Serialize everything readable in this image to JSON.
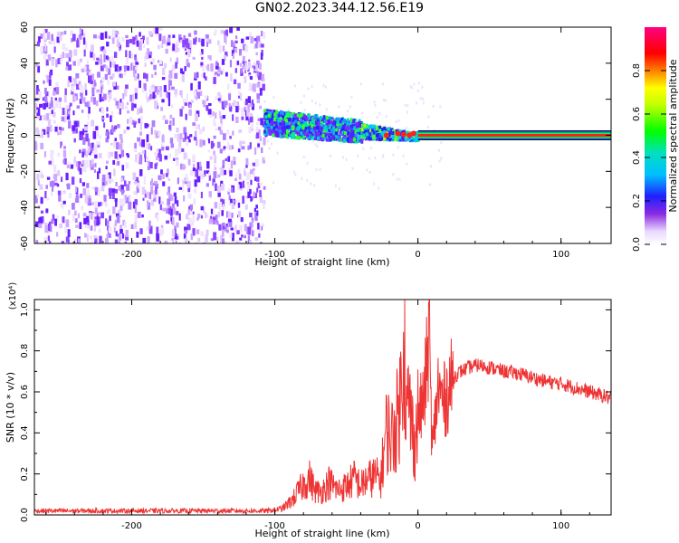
{
  "figure": {
    "title": "GN02.2023.344.12.56.E19"
  },
  "colorbar": {
    "label": "Normalized spectral amplitude",
    "ticks": [
      "0.0",
      "0.2",
      "0.4",
      "0.6",
      "0.8"
    ],
    "range": [
      0,
      1
    ]
  },
  "chart_data": [
    {
      "type": "heatmap",
      "title": "",
      "xlabel": "Height of straight line (km)",
      "ylabel": "Frequency (Hz)",
      "xlim": [
        -268,
        135
      ],
      "ylim": [
        -60,
        60
      ],
      "x_ticks": [
        -200,
        -100,
        0,
        100
      ],
      "y_ticks": [
        -60,
        -40,
        -20,
        0,
        20,
        40,
        60
      ],
      "regions": [
        {
          "name": "broadband noise",
          "x": [
            -268,
            -108
          ],
          "freq": [
            -60,
            60
          ],
          "amplitude": 0.05
        },
        {
          "name": "dispersive band",
          "x": [
            -108,
            -40
          ],
          "center_freq": [
            8,
            3
          ],
          "half_width": [
            7,
            6
          ],
          "amplitude": 0.35
        },
        {
          "name": "narrow band",
          "x": [
            -40,
            0
          ],
          "center_freq": [
            3,
            0
          ],
          "half_width": [
            4,
            2
          ],
          "amplitude": 0.45
        },
        {
          "name": "line at 0 Hz",
          "x": [
            0,
            135
          ],
          "freq": [
            0,
            0
          ],
          "amplitude": 1.0
        }
      ],
      "grid": false
    },
    {
      "type": "line",
      "title": "",
      "xlabel": "Height of straight line (km)",
      "ylabel": "SNR (10 * v/v)",
      "y_multiplier": "(x10⁴)",
      "xlim": [
        -268,
        135
      ],
      "ylim": [
        0,
        1.05
      ],
      "x_ticks": [
        -200,
        -100,
        0,
        100
      ],
      "y_ticks": [
        0.0,
        0.2,
        0.4,
        0.6,
        0.8,
        1.0
      ],
      "color": "#ee3333",
      "series": [
        {
          "x": [
            -268,
            -250,
            -230,
            -200,
            -170,
            -140,
            -120,
            -105,
            -95,
            -88,
            -82,
            -76,
            -72,
            -68,
            -62,
            -56,
            -50,
            -44,
            -40,
            -36,
            -30,
            -26,
            -22,
            -18,
            -15,
            -12,
            -10,
            -8,
            -6,
            -4,
            -2,
            0,
            4,
            8,
            10,
            14,
            18,
            22,
            26,
            30,
            36,
            42,
            50,
            60,
            70,
            80,
            90,
            100,
            110,
            120,
            130,
            135
          ],
          "y": [
            0.02,
            0.02,
            0.02,
            0.02,
            0.02,
            0.02,
            0.02,
            0.02,
            0.03,
            0.07,
            0.13,
            0.18,
            0.12,
            0.11,
            0.16,
            0.12,
            0.14,
            0.18,
            0.14,
            0.17,
            0.19,
            0.17,
            0.42,
            0.38,
            0.45,
            0.58,
            0.95,
            0.48,
            0.55,
            0.42,
            0.35,
            0.48,
            0.55,
            0.88,
            0.3,
            0.62,
            0.55,
            0.62,
            0.68,
            0.7,
            0.72,
            0.73,
            0.72,
            0.7,
            0.69,
            0.67,
            0.65,
            0.64,
            0.62,
            0.6,
            0.58,
            0.57
          ]
        }
      ],
      "grid": false
    }
  ]
}
